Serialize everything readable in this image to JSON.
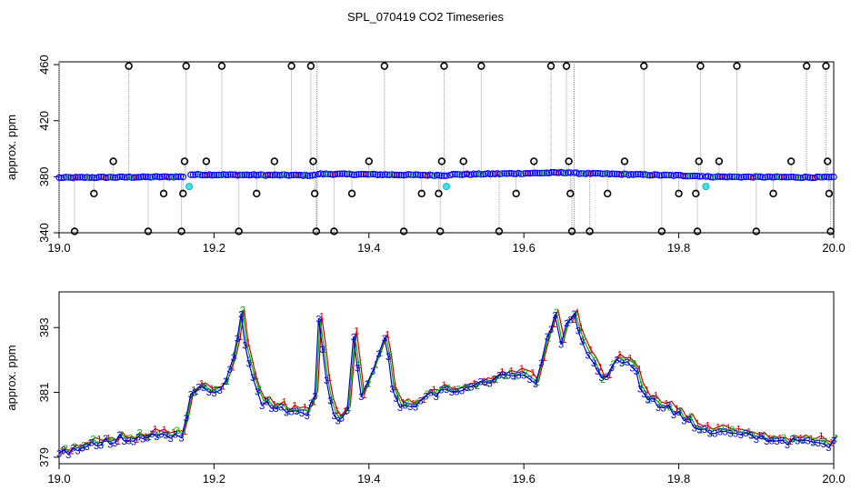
{
  "chart_data": {
    "title": "SPL_070419  CO2 Timeseries",
    "panels": [
      {
        "id": "top",
        "type": "scatter",
        "ylabel": "approx. ppm",
        "xlabel": "",
        "xlim": [
          19.0,
          20.0
        ],
        "ylim": [
          340,
          462
        ],
        "xticks": [
          19.0,
          19.2,
          19.4,
          19.6,
          19.8,
          20.0
        ],
        "xtick_labels": [
          "19.0",
          "19.2",
          "19.4",
          "19.6",
          "19.8",
          "20.0"
        ],
        "yticks": [
          340,
          380,
          420,
          460
        ],
        "ytick_labels": [
          "340",
          "380",
          "420",
          "460"
        ],
        "baseline_segments": [
          {
            "x": [
              19.0,
              19.16
            ],
            "y": [
              379.3,
              380.0
            ]
          },
          {
            "x": [
              19.17,
              19.33
            ],
            "y": [
              381.5,
              381.0
            ]
          },
          {
            "x": [
              19.335,
              19.5
            ],
            "y": [
              382.0,
              381.0
            ]
          },
          {
            "x": [
              19.505,
              19.66
            ],
            "y": [
              381.5,
              383.0
            ]
          },
          {
            "x": [
              19.665,
              19.83
            ],
            "y": [
              382.5,
              380.5
            ]
          },
          {
            "x": [
              19.835,
              20.0
            ],
            "y": [
              380.0,
              379.5
            ]
          }
        ],
        "outliers": [
          {
            "x": 19.02,
            "y": 341
          },
          {
            "x": 19.045,
            "y": 368
          },
          {
            "x": 19.07,
            "y": 391
          },
          {
            "x": 19.09,
            "y": 459
          },
          {
            "x": 19.115,
            "y": 341
          },
          {
            "x": 19.135,
            "y": 368
          },
          {
            "x": 19.158,
            "y": 341
          },
          {
            "x": 19.16,
            "y": 368
          },
          {
            "x": 19.162,
            "y": 391
          },
          {
            "x": 19.164,
            "y": 459
          },
          {
            "x": 19.21,
            "y": 459
          },
          {
            "x": 19.19,
            "y": 391
          },
          {
            "x": 19.232,
            "y": 341
          },
          {
            "x": 19.255,
            "y": 368
          },
          {
            "x": 19.278,
            "y": 391
          },
          {
            "x": 19.3,
            "y": 459
          },
          {
            "x": 19.325,
            "y": 459
          },
          {
            "x": 19.328,
            "y": 391
          },
          {
            "x": 19.33,
            "y": 368
          },
          {
            "x": 19.332,
            "y": 341
          },
          {
            "x": 19.355,
            "y": 341
          },
          {
            "x": 19.378,
            "y": 368
          },
          {
            "x": 19.4,
            "y": 391
          },
          {
            "x": 19.42,
            "y": 459
          },
          {
            "x": 19.445,
            "y": 341
          },
          {
            "x": 19.468,
            "y": 368
          },
          {
            "x": 19.49,
            "y": 368
          },
          {
            "x": 19.492,
            "y": 341
          },
          {
            "x": 19.494,
            "y": 391
          },
          {
            "x": 19.497,
            "y": 459
          },
          {
            "x": 19.522,
            "y": 391
          },
          {
            "x": 19.545,
            "y": 459
          },
          {
            "x": 19.568,
            "y": 341
          },
          {
            "x": 19.59,
            "y": 368
          },
          {
            "x": 19.613,
            "y": 391
          },
          {
            "x": 19.635,
            "y": 459
          },
          {
            "x": 19.655,
            "y": 459
          },
          {
            "x": 19.658,
            "y": 391
          },
          {
            "x": 19.66,
            "y": 368
          },
          {
            "x": 19.662,
            "y": 341
          },
          {
            "x": 19.685,
            "y": 341
          },
          {
            "x": 19.708,
            "y": 368
          },
          {
            "x": 19.73,
            "y": 391
          },
          {
            "x": 19.755,
            "y": 459
          },
          {
            "x": 19.778,
            "y": 341
          },
          {
            "x": 19.8,
            "y": 368
          },
          {
            "x": 19.822,
            "y": 368
          },
          {
            "x": 19.824,
            "y": 341
          },
          {
            "x": 19.826,
            "y": 391
          },
          {
            "x": 19.828,
            "y": 459
          },
          {
            "x": 19.852,
            "y": 391
          },
          {
            "x": 19.875,
            "y": 459
          },
          {
            "x": 19.9,
            "y": 341
          },
          {
            "x": 19.922,
            "y": 368
          },
          {
            "x": 19.945,
            "y": 391
          },
          {
            "x": 19.965,
            "y": 459
          },
          {
            "x": 19.99,
            "y": 459
          },
          {
            "x": 19.992,
            "y": 391
          },
          {
            "x": 19.994,
            "y": 368
          },
          {
            "x": 19.996,
            "y": 341
          }
        ],
        "cyan_points": [
          {
            "x": 19.168,
            "y": 373
          },
          {
            "x": 19.5,
            "y": 373
          },
          {
            "x": 19.835,
            "y": 373
          }
        ],
        "colors": {
          "series": "#0000ff",
          "outlier": "#000000",
          "cyan": "#40e0e0",
          "red": "#ff0000",
          "green": "#00c000"
        }
      },
      {
        "id": "bottom",
        "type": "line",
        "ylabel": "approx. ppm",
        "xlabel": "",
        "xlim": [
          19.0,
          20.0
        ],
        "ylim": [
          378.8,
          384.1
        ],
        "xticks": [
          19.0,
          19.2,
          19.4,
          19.6,
          19.8,
          20.0
        ],
        "xtick_labels": [
          "19.0",
          "19.2",
          "19.4",
          "19.6",
          "19.8",
          "20.0"
        ],
        "yticks": [
          379,
          381,
          383
        ],
        "ytick_labels": [
          "379",
          "381",
          "383"
        ],
        "series": [
          {
            "name": "1",
            "color": "#cc0000",
            "offset_x": 0.004,
            "offset_y": 0.12
          },
          {
            "name": "2",
            "color": "#00b000",
            "offset_x": 0.002,
            "offset_y": 0.06
          },
          {
            "name": "3",
            "color": "#0000cc",
            "offset_x": 0.0,
            "offset_y": 0.0
          }
        ],
        "keypoints": [
          [
            19.0,
            379.1
          ],
          [
            19.03,
            379.3
          ],
          [
            19.06,
            379.5
          ],
          [
            19.09,
            379.55
          ],
          [
            19.12,
            379.6
          ],
          [
            19.15,
            379.7
          ],
          [
            19.158,
            379.75
          ],
          [
            19.17,
            380.9
          ],
          [
            19.18,
            381.05
          ],
          [
            19.2,
            381.1
          ],
          [
            19.215,
            381.3
          ],
          [
            19.225,
            382.0
          ],
          [
            19.235,
            383.5
          ],
          [
            19.24,
            382.5
          ],
          [
            19.25,
            381.5
          ],
          [
            19.262,
            380.7
          ],
          [
            19.28,
            380.5
          ],
          [
            19.3,
            380.4
          ],
          [
            19.32,
            380.45
          ],
          [
            19.33,
            381.0
          ],
          [
            19.335,
            383.2
          ],
          [
            19.345,
            381.3
          ],
          [
            19.355,
            380.3
          ],
          [
            19.365,
            380.2
          ],
          [
            19.372,
            380.6
          ],
          [
            19.38,
            382.8
          ],
          [
            19.39,
            380.9
          ],
          [
            19.405,
            381.7
          ],
          [
            19.42,
            382.8
          ],
          [
            19.43,
            381.2
          ],
          [
            19.44,
            380.5
          ],
          [
            19.46,
            380.7
          ],
          [
            19.48,
            380.9
          ],
          [
            19.5,
            381.1
          ],
          [
            19.52,
            381.05
          ],
          [
            19.55,
            381.3
          ],
          [
            19.58,
            381.5
          ],
          [
            19.6,
            381.6
          ],
          [
            19.615,
            381.3
          ],
          [
            19.63,
            382.6
          ],
          [
            19.64,
            383.4
          ],
          [
            19.648,
            382.4
          ],
          [
            19.655,
            383.0
          ],
          [
            19.665,
            383.4
          ],
          [
            19.675,
            382.5
          ],
          [
            19.69,
            381.8
          ],
          [
            19.7,
            381.3
          ],
          [
            19.72,
            382.0
          ],
          [
            19.74,
            381.9
          ],
          [
            19.75,
            381.2
          ],
          [
            19.76,
            380.8
          ],
          [
            19.78,
            380.6
          ],
          [
            19.8,
            380.3
          ],
          [
            19.82,
            379.95
          ],
          [
            19.84,
            379.85
          ],
          [
            19.88,
            379.65
          ],
          [
            19.92,
            379.55
          ],
          [
            19.96,
            379.45
          ],
          [
            19.98,
            379.45
          ],
          [
            20.0,
            379.4
          ]
        ]
      }
    ]
  }
}
